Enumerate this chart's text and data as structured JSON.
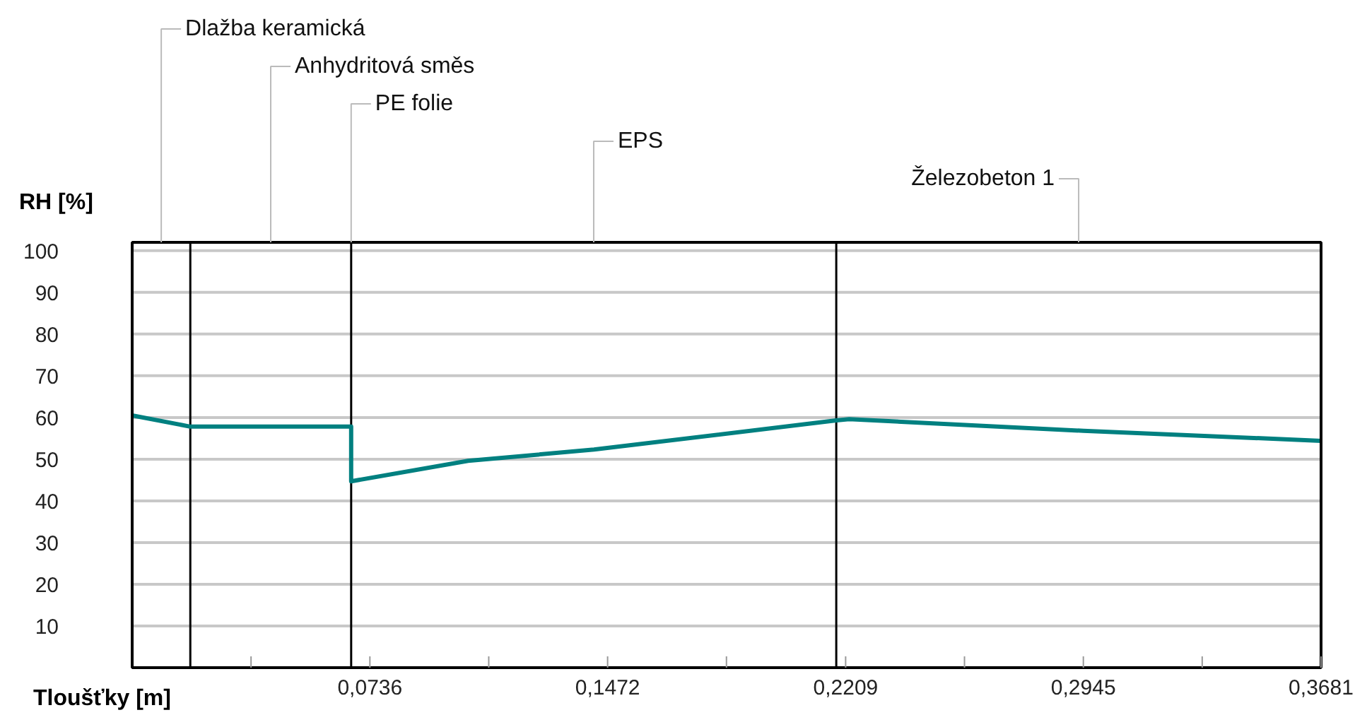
{
  "chart_data": {
    "type": "line",
    "xlabel": "Tloušťky [m]",
    "ylabel": "RH [%]",
    "x": [
      0,
      0.018,
      0.0678,
      0.0678,
      0.104,
      0.143,
      0.218,
      0.222,
      0.2945,
      0.3681
    ],
    "series": [
      {
        "color": "#008080",
        "values": [
          60.5,
          57.8,
          57.8,
          44.7,
          49.6,
          52.3,
          59.3,
          59.6,
          56.8,
          54.4
        ]
      }
    ],
    "xlim": [
      0,
      0.3681
    ],
    "ylim": [
      0,
      102
    ],
    "xticks": [
      {
        "value": 0.0368,
        "label": null
      },
      {
        "value": 0.0736,
        "label": "0,0736"
      },
      {
        "value": 0.1104,
        "label": null
      },
      {
        "value": 0.1472,
        "label": "0,1472"
      },
      {
        "value": 0.184,
        "label": null
      },
      {
        "value": 0.2209,
        "label": "0,2209"
      },
      {
        "value": 0.2577,
        "label": null
      },
      {
        "value": 0.2945,
        "label": "0,2945"
      },
      {
        "value": 0.3313,
        "label": null
      },
      {
        "value": 0.3681,
        "label": "0,3681"
      }
    ],
    "yticks": [
      10,
      20,
      30,
      40,
      50,
      60,
      70,
      80,
      90,
      100
    ],
    "grid": "y",
    "marker": "none",
    "line_style": "solid",
    "ref_lines": [
      {
        "axis": "x",
        "value": 0.018,
        "color": "#000000"
      },
      {
        "axis": "x",
        "value": 0.0678,
        "color": "#000000"
      },
      {
        "axis": "x",
        "value": 0.218,
        "color": "#000000"
      }
    ],
    "annotations": [
      "Dlažba keramická",
      "Anhydritová směs",
      {
        "text": "PE folie",
        "x": 0.0678,
        "y": 102
      },
      "EPS",
      "Železobeton 1"
    ]
  }
}
